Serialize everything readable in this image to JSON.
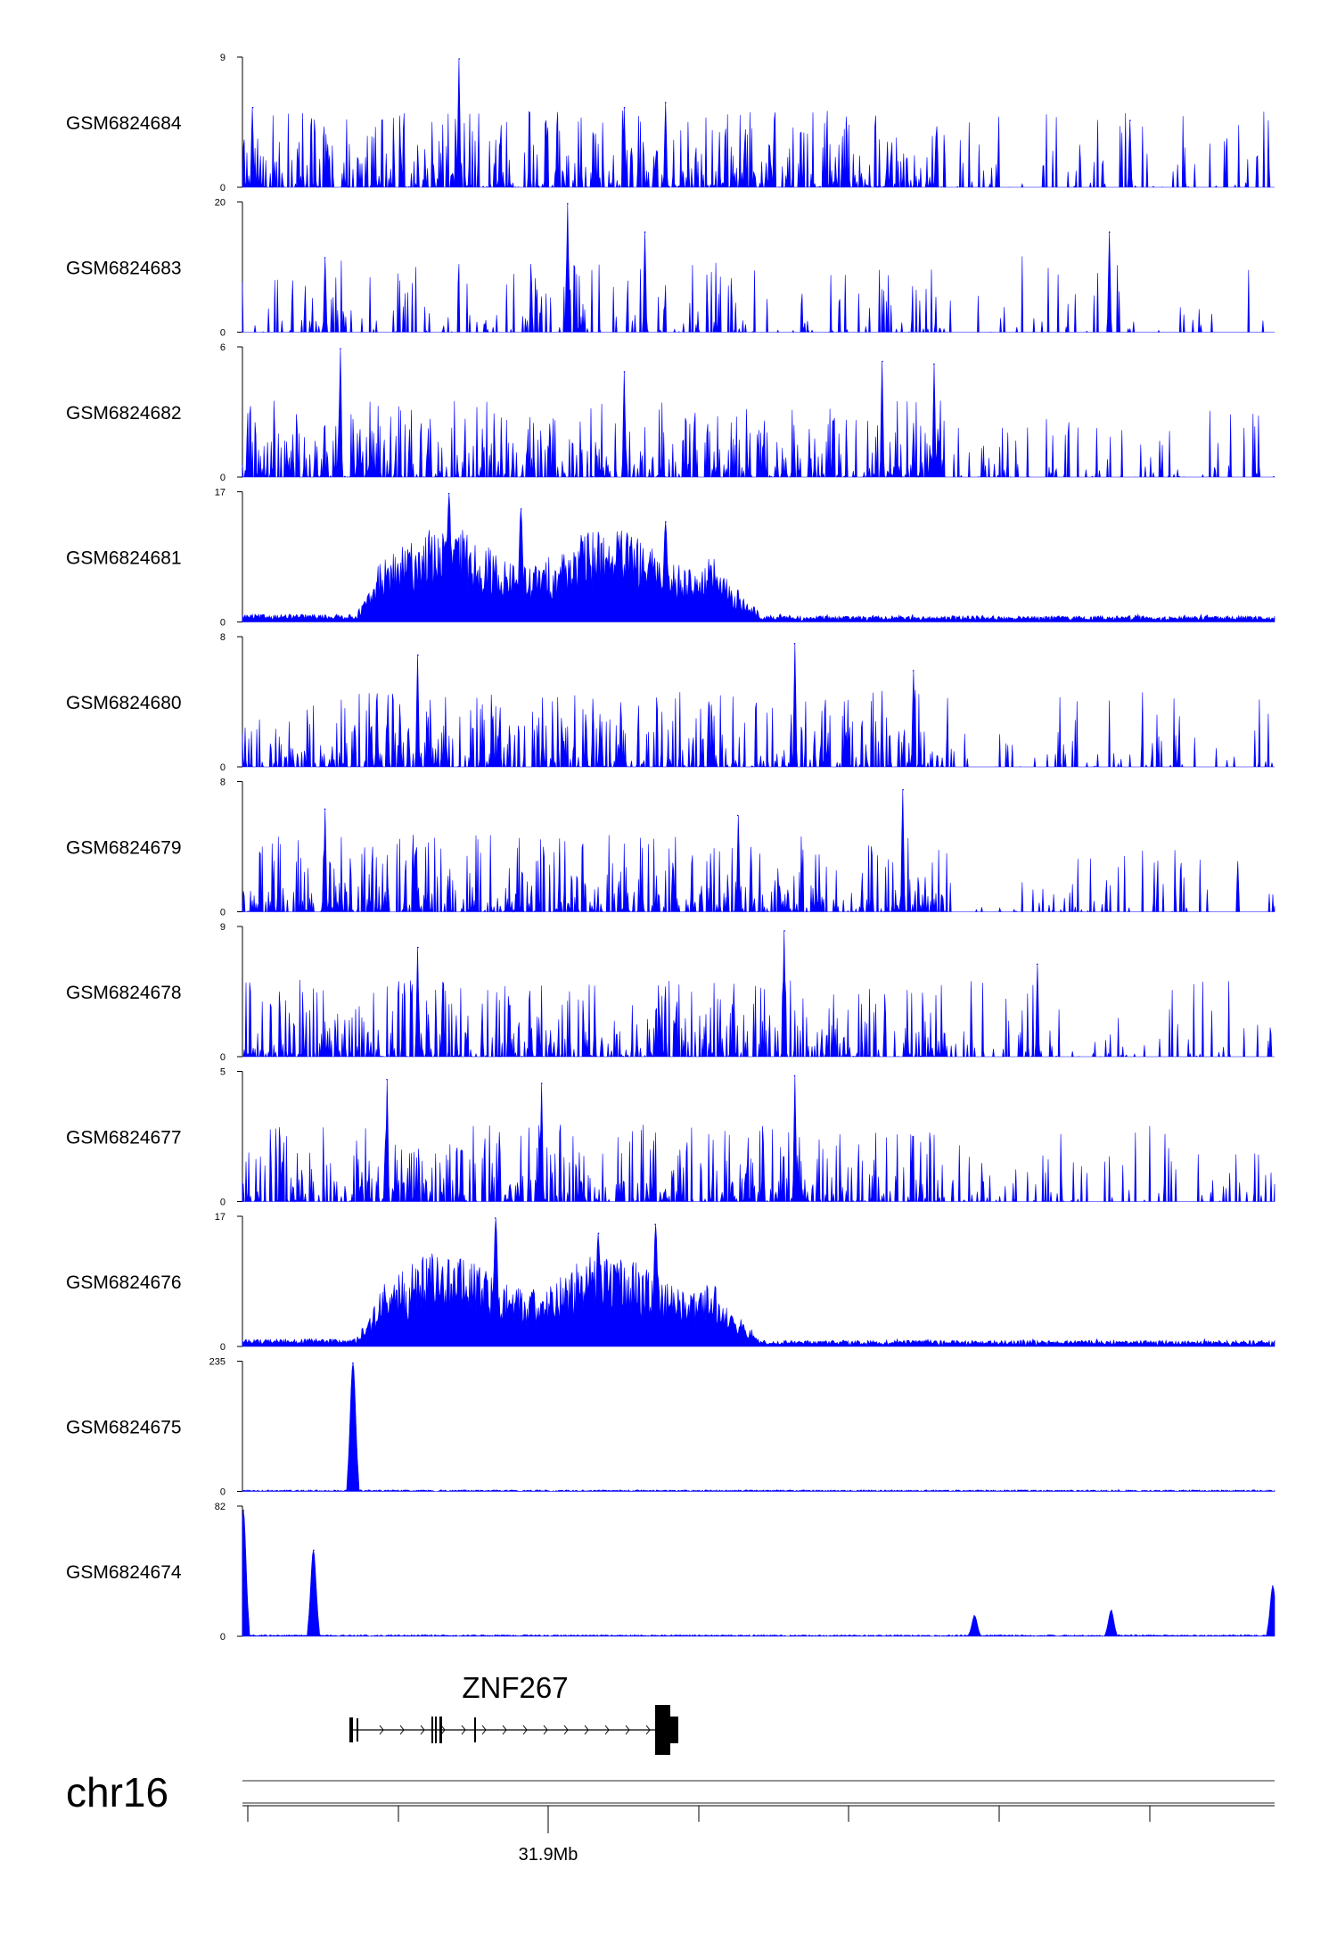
{
  "chart_data": {
    "type": "area",
    "chromosome": "chr16",
    "color": "#0000ff",
    "x_tick_labels": [
      {
        "label": "31.9Mb",
        "position_mb": 31.9
      }
    ],
    "gene": {
      "name": "ZNF267",
      "strand": "+"
    },
    "series": [
      {
        "name": "GSM6824684",
        "ylim": [
          0,
          9
        ],
        "pattern": "noise",
        "peaks": [
          {
            "at": 0.21,
            "h": 1.0
          },
          {
            "at": 0.01,
            "h": 0.62
          },
          {
            "at": 0.41,
            "h": 0.66
          },
          {
            "at": 0.37,
            "h": 0.62
          },
          {
            "at": 0.86,
            "h": 0.52
          }
        ]
      },
      {
        "name": "GSM6824683",
        "ylim": [
          0,
          20
        ],
        "pattern": "sparse",
        "peaks": [
          {
            "at": 0.315,
            "h": 1.0
          },
          {
            "at": 0.84,
            "h": 0.78
          },
          {
            "at": 0.39,
            "h": 0.78
          },
          {
            "at": 0.08,
            "h": 0.58
          }
        ]
      },
      {
        "name": "GSM6824682",
        "ylim": [
          0,
          6
        ],
        "pattern": "noise",
        "peaks": [
          {
            "at": 0.095,
            "h": 1.0
          },
          {
            "at": 0.62,
            "h": 0.9
          },
          {
            "at": 0.67,
            "h": 0.88
          },
          {
            "at": 0.37,
            "h": 0.82
          }
        ]
      },
      {
        "name": "GSM6824681",
        "ylim": [
          0,
          17
        ],
        "pattern": "broad",
        "peaks": [
          {
            "at": 0.2,
            "h": 1.0
          },
          {
            "at": 0.27,
            "h": 0.88
          },
          {
            "at": 0.41,
            "h": 0.78
          }
        ]
      },
      {
        "name": "GSM6824680",
        "ylim": [
          0,
          8
        ],
        "pattern": "noise",
        "peaks": [
          {
            "at": 0.535,
            "h": 0.96
          },
          {
            "at": 0.17,
            "h": 0.87
          },
          {
            "at": 0.65,
            "h": 0.75
          }
        ]
      },
      {
        "name": "GSM6824679",
        "ylim": [
          0,
          8
        ],
        "pattern": "noise",
        "peaks": [
          {
            "at": 0.64,
            "h": 0.95
          },
          {
            "at": 0.08,
            "h": 0.8
          },
          {
            "at": 0.48,
            "h": 0.75
          }
        ]
      },
      {
        "name": "GSM6824678",
        "ylim": [
          0,
          9
        ],
        "pattern": "noise",
        "peaks": [
          {
            "at": 0.525,
            "h": 0.98
          },
          {
            "at": 0.17,
            "h": 0.85
          },
          {
            "at": 0.77,
            "h": 0.72
          }
        ]
      },
      {
        "name": "GSM6824677",
        "ylim": [
          0,
          5
        ],
        "pattern": "noise",
        "peaks": [
          {
            "at": 0.535,
            "h": 0.98
          },
          {
            "at": 0.14,
            "h": 0.95
          },
          {
            "at": 0.29,
            "h": 0.92
          }
        ]
      },
      {
        "name": "GSM6824676",
        "ylim": [
          0,
          17
        ],
        "pattern": "broad",
        "peaks": [
          {
            "at": 0.245,
            "h": 1.0
          },
          {
            "at": 0.4,
            "h": 0.95
          },
          {
            "at": 0.345,
            "h": 0.88
          }
        ]
      },
      {
        "name": "GSM6824675",
        "ylim": [
          0,
          235
        ],
        "pattern": "spike",
        "peaks": [
          {
            "at": 0.107,
            "h": 1.0
          }
        ]
      },
      {
        "name": "GSM6824674",
        "ylim": [
          0,
          82
        ],
        "pattern": "spike",
        "peaks": [
          {
            "at": 0.001,
            "h": 0.98
          },
          {
            "at": 0.069,
            "h": 0.67
          },
          {
            "at": 0.998,
            "h": 0.39
          },
          {
            "at": 0.842,
            "h": 0.2
          },
          {
            "at": 0.709,
            "h": 0.16
          }
        ]
      }
    ]
  }
}
